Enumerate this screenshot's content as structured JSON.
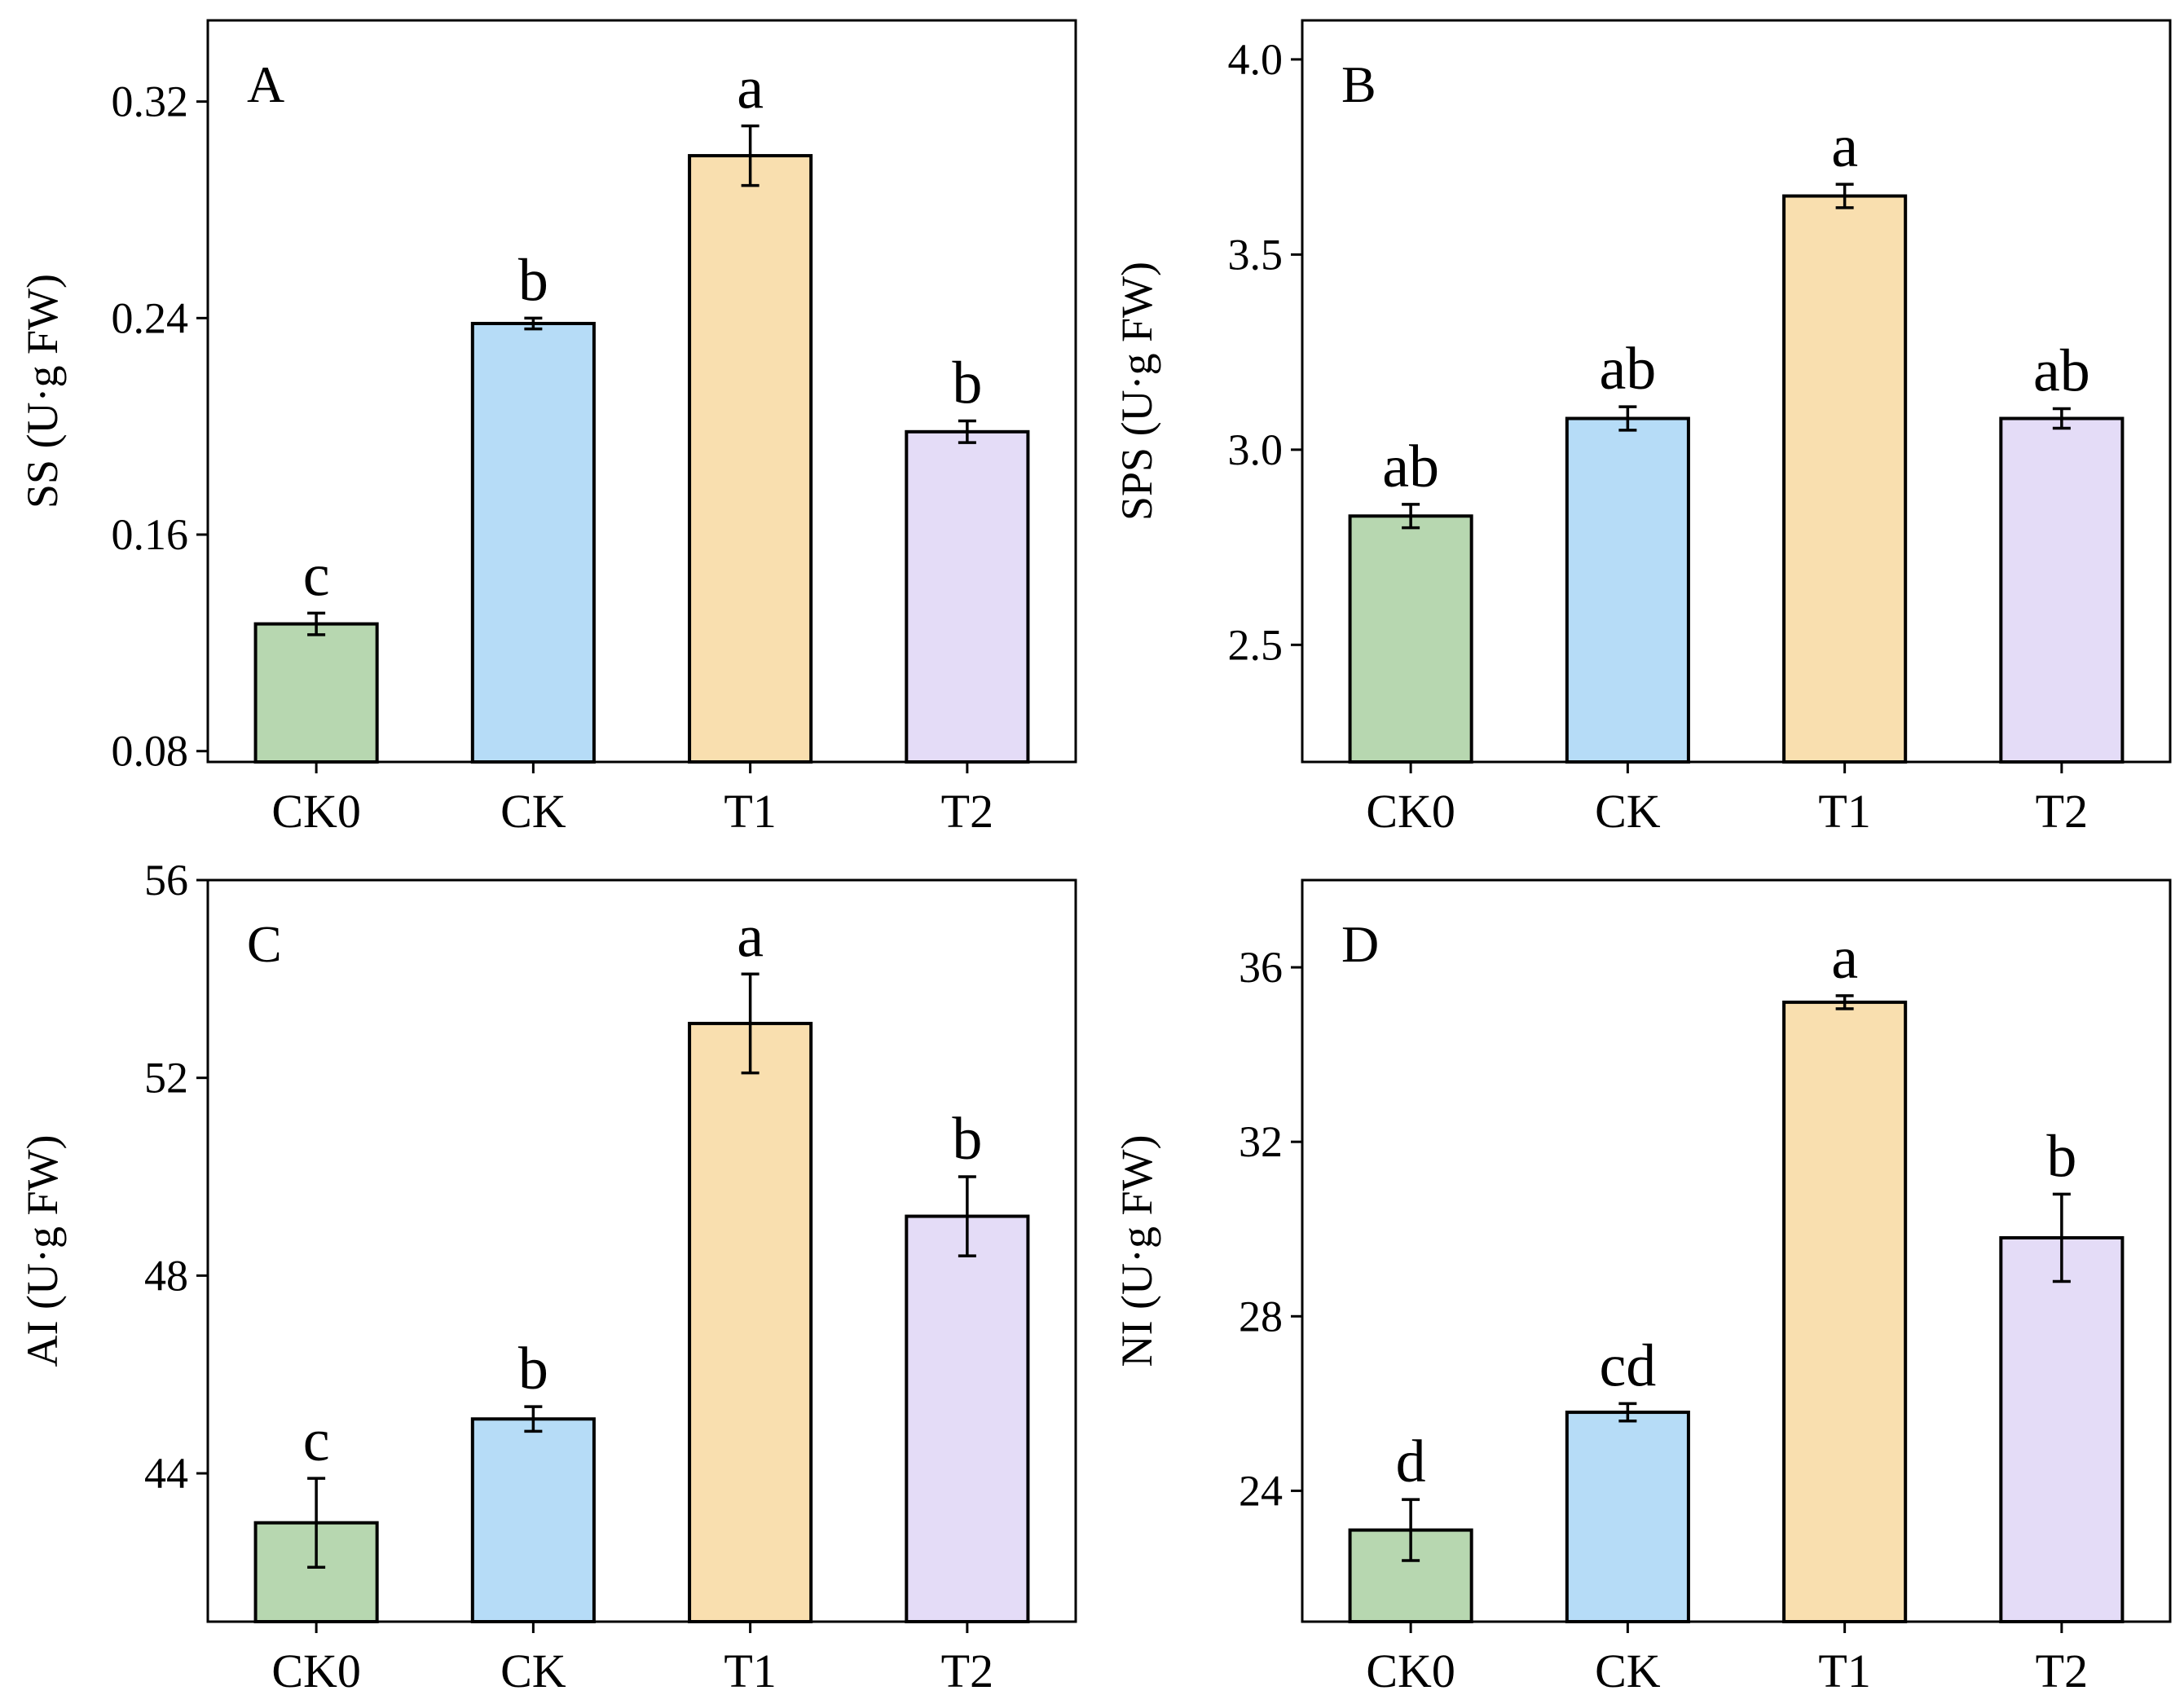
{
  "chart_data": [
    {
      "type": "bar",
      "panel": "A",
      "ylabel": "SS (U·g FW)",
      "categories": [
        "CK0",
        "CK",
        "T1",
        "T2"
      ],
      "values": [
        0.127,
        0.238,
        0.3,
        0.198
      ],
      "errors": [
        0.004,
        0.002,
        0.011,
        0.004
      ],
      "significance": [
        "c",
        "b",
        "a",
        "b"
      ],
      "colors": [
        "#b7d7b0",
        "#b6dcf7",
        "#f9dfaf",
        "#e4dcf7"
      ],
      "ylim": [
        0.076,
        0.35
      ],
      "yticks": [
        0.08,
        0.16,
        0.24,
        0.32
      ],
      "ytick_labels": [
        "0.08",
        "0.16",
        "0.24",
        "0.32"
      ]
    },
    {
      "type": "bar",
      "panel": "B",
      "ylabel": "SPS (U·g FW)",
      "categories": [
        "CK0",
        "CK",
        "T1",
        "T2"
      ],
      "values": [
        2.83,
        3.08,
        3.65,
        3.08
      ],
      "errors": [
        0.03,
        0.03,
        0.03,
        0.025
      ],
      "significance": [
        "ab",
        "ab",
        "a",
        "ab"
      ],
      "colors": [
        "#b7d7b0",
        "#b6dcf7",
        "#f9dfaf",
        "#e4dcf7"
      ],
      "ylim": [
        2.2,
        4.1
      ],
      "yticks": [
        2.5,
        3.0,
        3.5,
        4.0
      ],
      "ytick_labels": [
        "2.5",
        "3.0",
        "3.5",
        "4.0"
      ]
    },
    {
      "type": "bar",
      "panel": "C",
      "ylabel": "AI (U·g FW)",
      "categories": [
        "CK0",
        "CK",
        "T1",
        "T2"
      ],
      "values": [
        43.0,
        45.1,
        53.1,
        49.2
      ],
      "errors": [
        0.9,
        0.25,
        1.0,
        0.8
      ],
      "significance": [
        "c",
        "b",
        "a",
        "b"
      ],
      "colors": [
        "#b7d7b0",
        "#b6dcf7",
        "#f9dfaf",
        "#e4dcf7"
      ],
      "ylim": [
        41.0,
        56.0
      ],
      "yticks": [
        44,
        48,
        52,
        56
      ],
      "ytick_labels": [
        "44",
        "48",
        "52",
        "56"
      ]
    },
    {
      "type": "bar",
      "panel": "D",
      "ylabel": "NI (U·g FW)",
      "categories": [
        "CK0",
        "CK",
        "T1",
        "T2"
      ],
      "values": [
        23.1,
        25.8,
        35.2,
        29.8
      ],
      "errors": [
        0.7,
        0.2,
        0.15,
        1.0
      ],
      "significance": [
        "d",
        "cd",
        "a",
        "b"
      ],
      "colors": [
        "#b7d7b0",
        "#b6dcf7",
        "#f9dfaf",
        "#e4dcf7"
      ],
      "ylim": [
        21.0,
        38.0
      ],
      "yticks": [
        24,
        28,
        32,
        36
      ],
      "ytick_labels": [
        "24",
        "28",
        "32",
        "36"
      ]
    }
  ]
}
